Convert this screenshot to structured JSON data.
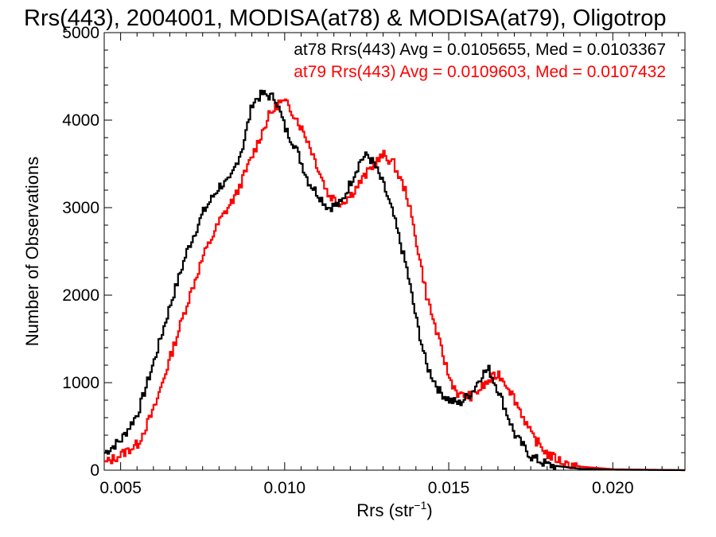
{
  "chart_data": {
    "type": "line",
    "title": "Rrs(443), 2004001, MODISA(at78) & MODISA(at79), Oligotrop",
    "xlabel": "Rrs (str",
    "xlabel_sup": "−1",
    "xlabel_end": ")",
    "ylabel": "Number of Observations",
    "xlim": [
      0.0045,
      0.0222
    ],
    "ylim": [
      0,
      5000
    ],
    "x_ticks": [
      0.005,
      0.01,
      0.015,
      0.02
    ],
    "x_tick_labels": [
      "0.005",
      "0.010",
      "0.015",
      "0.020"
    ],
    "y_ticks": [
      0,
      1000,
      2000,
      3000,
      4000,
      5000
    ],
    "y_tick_labels": [
      "0",
      "1000",
      "2000",
      "3000",
      "4000",
      "5000"
    ],
    "step": "histogram",
    "series": [
      {
        "name": "at78",
        "color": "#000000",
        "annotation": "at78 Rrs(443) Avg = 0.0105655, Med = 0.0103367",
        "points": [
          [
            0.0045,
            200
          ],
          [
            0.005,
            350
          ],
          [
            0.0055,
            650
          ],
          [
            0.006,
            1250
          ],
          [
            0.0065,
            1900
          ],
          [
            0.007,
            2500
          ],
          [
            0.0075,
            2950
          ],
          [
            0.008,
            3250
          ],
          [
            0.0083,
            3300
          ],
          [
            0.0087,
            3700
          ],
          [
            0.009,
            4200
          ],
          [
            0.0093,
            4300
          ],
          [
            0.0097,
            4250
          ],
          [
            0.01,
            3900
          ],
          [
            0.0103,
            3700
          ],
          [
            0.0107,
            3300
          ],
          [
            0.011,
            3150
          ],
          [
            0.0113,
            3000
          ],
          [
            0.0117,
            3050
          ],
          [
            0.012,
            3300
          ],
          [
            0.0123,
            3550
          ],
          [
            0.0125,
            3600
          ],
          [
            0.0127,
            3500
          ],
          [
            0.013,
            3250
          ],
          [
            0.0133,
            2900
          ],
          [
            0.0137,
            2300
          ],
          [
            0.014,
            1700
          ],
          [
            0.0143,
            1200
          ],
          [
            0.0147,
            900
          ],
          [
            0.015,
            800
          ],
          [
            0.0153,
            760
          ],
          [
            0.0157,
            900
          ],
          [
            0.016,
            1100
          ],
          [
            0.0162,
            1150
          ],
          [
            0.0165,
            900
          ],
          [
            0.017,
            400
          ],
          [
            0.0175,
            150
          ],
          [
            0.018,
            60
          ],
          [
            0.019,
            15
          ],
          [
            0.02,
            5
          ],
          [
            0.0222,
            0
          ]
        ]
      },
      {
        "name": "at79",
        "color": "#ff0000",
        "annotation": "at79 Rrs(443) Avg = 0.0109603, Med = 0.0107432",
        "points": [
          [
            0.0045,
            80
          ],
          [
            0.005,
            180
          ],
          [
            0.0055,
            300
          ],
          [
            0.006,
            700
          ],
          [
            0.0065,
            1300
          ],
          [
            0.007,
            1900
          ],
          [
            0.0075,
            2450
          ],
          [
            0.008,
            2850
          ],
          [
            0.0085,
            3150
          ],
          [
            0.009,
            3600
          ],
          [
            0.0095,
            4050
          ],
          [
            0.0098,
            4200
          ],
          [
            0.01,
            4200
          ],
          [
            0.0103,
            4050
          ],
          [
            0.0107,
            3750
          ],
          [
            0.011,
            3450
          ],
          [
            0.0113,
            3150
          ],
          [
            0.0117,
            3050
          ],
          [
            0.012,
            3150
          ],
          [
            0.0123,
            3300
          ],
          [
            0.0127,
            3500
          ],
          [
            0.013,
            3600
          ],
          [
            0.0133,
            3500
          ],
          [
            0.0137,
            3150
          ],
          [
            0.014,
            2600
          ],
          [
            0.0143,
            2000
          ],
          [
            0.0147,
            1450
          ],
          [
            0.015,
            1050
          ],
          [
            0.0153,
            850
          ],
          [
            0.0157,
            850
          ],
          [
            0.016,
            950
          ],
          [
            0.0163,
            1050
          ],
          [
            0.0165,
            1100
          ],
          [
            0.0168,
            950
          ],
          [
            0.0172,
            650
          ],
          [
            0.0175,
            400
          ],
          [
            0.018,
            180
          ],
          [
            0.0185,
            80
          ],
          [
            0.019,
            40
          ],
          [
            0.02,
            10
          ],
          [
            0.0222,
            0
          ]
        ]
      }
    ]
  }
}
